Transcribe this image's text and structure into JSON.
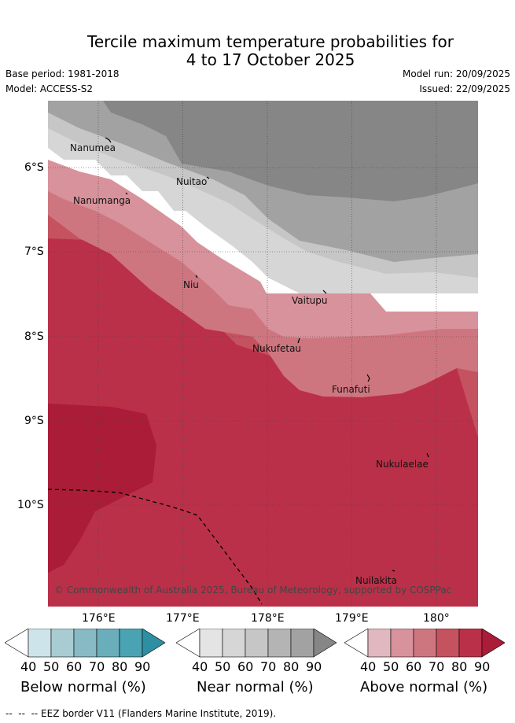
{
  "title": {
    "line1": "Tercile maximum temperature probabilities for",
    "line2": "4 to 17 October 2025"
  },
  "meta": {
    "base_period": "Base period: 1981-2018",
    "model": "Model: ACCESS-S2",
    "model_run": "Model run: 20/09/2025",
    "issued": "Issued: 22/09/2025"
  },
  "map": {
    "lat_labels": [
      "6°S",
      "7°S",
      "8°S",
      "9°S",
      "10°S"
    ],
    "lon_labels": [
      "176°E",
      "177°E",
      "178°E",
      "179°E",
      "180°"
    ],
    "places": [
      "Nanumea",
      "Nuitao",
      "Nanumanga",
      "Niu",
      "Vaitupu",
      "Nukufetau",
      "Funafuti",
      "Nukulaelae",
      "Nuilakita"
    ],
    "copyright": "© Commonwealth of Australia 2025, Bureau of Meteorology, supported by COSPPac"
  },
  "legends": [
    {
      "title": "Below normal (%)",
      "values": [
        "40",
        "50",
        "60",
        "70",
        "80",
        "90"
      ],
      "colors": [
        "#ffffff",
        "#cde4ea",
        "#a8ccd2",
        "#88bac5",
        "#6aaebb",
        "#4aa3b2",
        "#2e8ea2"
      ]
    },
    {
      "title": "Near normal (%)",
      "values": [
        "40",
        "50",
        "60",
        "70",
        "80",
        "90"
      ],
      "colors": [
        "#ffffff",
        "#e4e4e4",
        "#d6d6d6",
        "#c6c6c6",
        "#b4b4b4",
        "#a2a2a2",
        "#868686"
      ]
    },
    {
      "title": "Above normal (%)",
      "values": [
        "40",
        "50",
        "60",
        "70",
        "80",
        "90"
      ],
      "colors": [
        "#ffffff",
        "#e2b8c0",
        "#d8929b",
        "#ce7680",
        "#c5525f",
        "#bb3049",
        "#aa1c38"
      ]
    }
  ],
  "footnote": "--  --  -- EEZ border V11 (Flanders Marine Institute, 2019)."
}
